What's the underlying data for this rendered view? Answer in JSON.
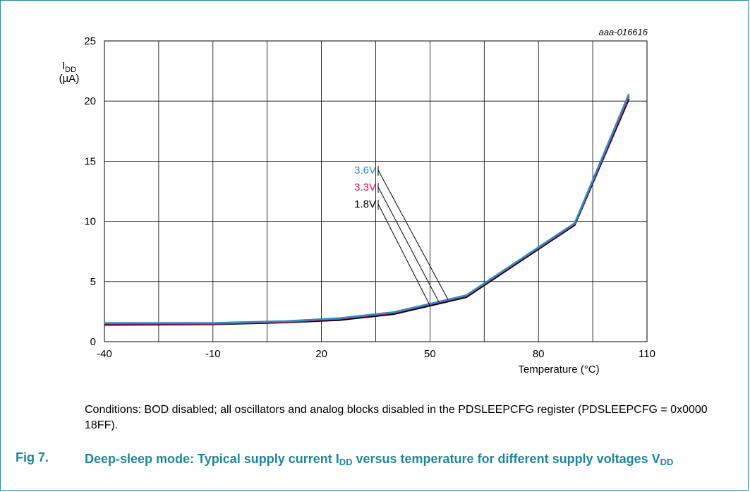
{
  "chart_data": {
    "type": "line",
    "tag": "aaa-016616",
    "ylabel": {
      "main": "I",
      "sub": "DD",
      "unit": "(µA)"
    },
    "xlabel": "Temperature (°C)",
    "xticks": [
      -40,
      -10,
      20,
      50,
      80,
      110
    ],
    "yticks": [
      0,
      5,
      10,
      15,
      20,
      25
    ],
    "xlim": [
      -40,
      110
    ],
    "ylim": [
      0,
      25
    ],
    "grid": true,
    "series": [
      {
        "name": "1.8V",
        "color": "#000000",
        "points": [
          [
            -40,
            1.4
          ],
          [
            -10,
            1.45
          ],
          [
            10,
            1.6
          ],
          [
            25,
            1.8
          ],
          [
            40,
            2.3
          ],
          [
            60,
            3.7
          ],
          [
            90,
            9.7
          ],
          [
            105,
            20.2
          ]
        ]
      },
      {
        "name": "3.3V",
        "color": "#d4145a",
        "points": [
          [
            -40,
            1.5
          ],
          [
            -10,
            1.5
          ],
          [
            10,
            1.65
          ],
          [
            25,
            1.9
          ],
          [
            40,
            2.4
          ],
          [
            60,
            3.8
          ],
          [
            90,
            9.8
          ],
          [
            105,
            20.4
          ]
        ]
      },
      {
        "name": "3.6V",
        "color": "#2b8fc6",
        "points": [
          [
            -40,
            1.55
          ],
          [
            -10,
            1.55
          ],
          [
            10,
            1.7
          ],
          [
            25,
            1.95
          ],
          [
            40,
            2.45
          ],
          [
            60,
            3.85
          ],
          [
            90,
            9.85
          ],
          [
            105,
            20.6
          ]
        ]
      }
    ]
  },
  "conditions_text": "Conditions: BOD disabled; all oscillators and analog blocks disabled in the PDSLEEPCFG register (PDSLEEPCFG = 0x0000 18FF).",
  "caption": {
    "label": "Fig 7.",
    "title_part1": "Deep-sleep mode: Typical supply current I",
    "title_sub1": "DD",
    "title_part2": " versus temperature for different supply voltages V",
    "title_sub2": "DD"
  }
}
